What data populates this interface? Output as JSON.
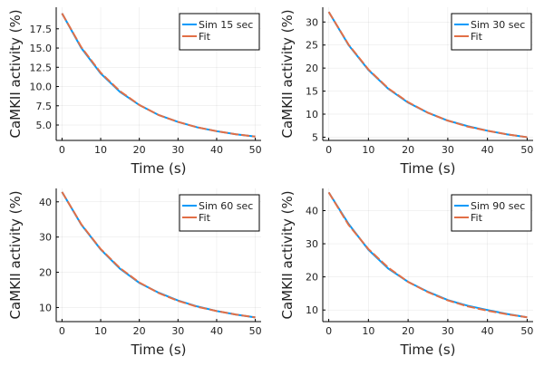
{
  "chart_data": [
    {
      "type": "line",
      "xlabel": "Time (s)",
      "ylabel": "CaMKII activity (%)",
      "xlim": [
        -1.5,
        51.5
      ],
      "ylim": [
        3.0,
        20.3
      ],
      "xticks": [
        0,
        10,
        20,
        30,
        40,
        50
      ],
      "yticks": [
        5.0,
        7.5,
        10.0,
        12.5,
        15.0,
        17.5
      ],
      "ytick_labels": [
        "5.0",
        "7.5",
        "10.0",
        "12.5",
        "15.0",
        "17.5"
      ],
      "grid": true,
      "legend": "top-right",
      "x": [
        0,
        5,
        10,
        15,
        20,
        25,
        30,
        35,
        40,
        45,
        50
      ],
      "series": [
        {
          "name": "Sim 15 sec",
          "color": "#009AFA",
          "values": [
            19.5,
            15.0,
            11.7,
            9.3,
            7.6,
            6.3,
            5.4,
            4.7,
            4.2,
            3.8,
            3.5
          ]
        },
        {
          "name": "Fit",
          "color": "#E26F46",
          "values": [
            19.5,
            15.1,
            11.8,
            9.4,
            7.6,
            6.3,
            5.4,
            4.7,
            4.2,
            3.8,
            3.5
          ]
        }
      ]
    },
    {
      "type": "line",
      "xlabel": "Time (s)",
      "ylabel": "CaMKII activity (%)",
      "xlim": [
        -1.5,
        51.5
      ],
      "ylim": [
        4.3,
        33.2
      ],
      "xticks": [
        0,
        10,
        20,
        30,
        40,
        50
      ],
      "yticks": [
        5,
        10,
        15,
        20,
        25,
        30
      ],
      "ytick_labels": [
        "5",
        "10",
        "15",
        "20",
        "25",
        "30"
      ],
      "grid": true,
      "legend": "top-right",
      "x": [
        0,
        5,
        10,
        15,
        20,
        25,
        30,
        35,
        40,
        45,
        50
      ],
      "series": [
        {
          "name": "Sim 30 sec",
          "color": "#009AFA",
          "values": [
            32.2,
            25.0,
            19.6,
            15.5,
            12.5,
            10.3,
            8.6,
            7.4,
            6.4,
            5.6,
            5.0
          ]
        },
        {
          "name": "Fit",
          "color": "#E26F46",
          "values": [
            32.2,
            25.1,
            19.7,
            15.6,
            12.6,
            10.3,
            8.6,
            7.3,
            6.4,
            5.6,
            5.0
          ]
        }
      ]
    },
    {
      "type": "line",
      "xlabel": "Time (s)",
      "ylabel": "CaMKII activity (%)",
      "xlim": [
        -1.5,
        51.5
      ],
      "ylim": [
        6.0,
        43.8
      ],
      "xticks": [
        0,
        10,
        20,
        30,
        40,
        50
      ],
      "yticks": [
        10,
        20,
        30,
        40
      ],
      "ytick_labels": [
        "10",
        "20",
        "30",
        "40"
      ],
      "grid": true,
      "legend": "top-right",
      "x": [
        0,
        5,
        10,
        15,
        20,
        25,
        30,
        35,
        40,
        45,
        50
      ],
      "series": [
        {
          "name": "Sim 60 sec",
          "color": "#009AFA",
          "values": [
            42.8,
            33.5,
            26.5,
            21.0,
            17.0,
            14.2,
            12.0,
            10.3,
            9.0,
            8.0,
            7.2
          ]
        },
        {
          "name": "Fit",
          "color": "#E26F46",
          "values": [
            42.8,
            33.6,
            26.6,
            21.2,
            17.1,
            14.1,
            11.9,
            10.2,
            9.0,
            8.0,
            7.2
          ]
        }
      ]
    },
    {
      "type": "line",
      "xlabel": "Time (s)",
      "ylabel": "CaMKII activity (%)",
      "xlim": [
        -1.5,
        51.5
      ],
      "ylim": [
        6.5,
        46.7
      ],
      "xticks": [
        0,
        10,
        20,
        30,
        40,
        50
      ],
      "yticks": [
        10,
        20,
        30,
        40
      ],
      "ytick_labels": [
        "10",
        "20",
        "30",
        "40"
      ],
      "grid": true,
      "legend": "top-right",
      "x": [
        0,
        5,
        10,
        15,
        20,
        25,
        30,
        35,
        40,
        45,
        50
      ],
      "series": [
        {
          "name": "Sim 90 sec",
          "color": "#009AFA",
          "values": [
            45.5,
            36.0,
            28.2,
            22.5,
            18.5,
            15.5,
            13.0,
            11.3,
            10.0,
            8.8,
            7.8
          ]
        },
        {
          "name": "Fit",
          "color": "#E26F46",
          "values": [
            45.5,
            35.7,
            28.4,
            22.8,
            18.5,
            15.4,
            12.9,
            11.1,
            9.8,
            8.7,
            7.8
          ]
        }
      ]
    }
  ]
}
